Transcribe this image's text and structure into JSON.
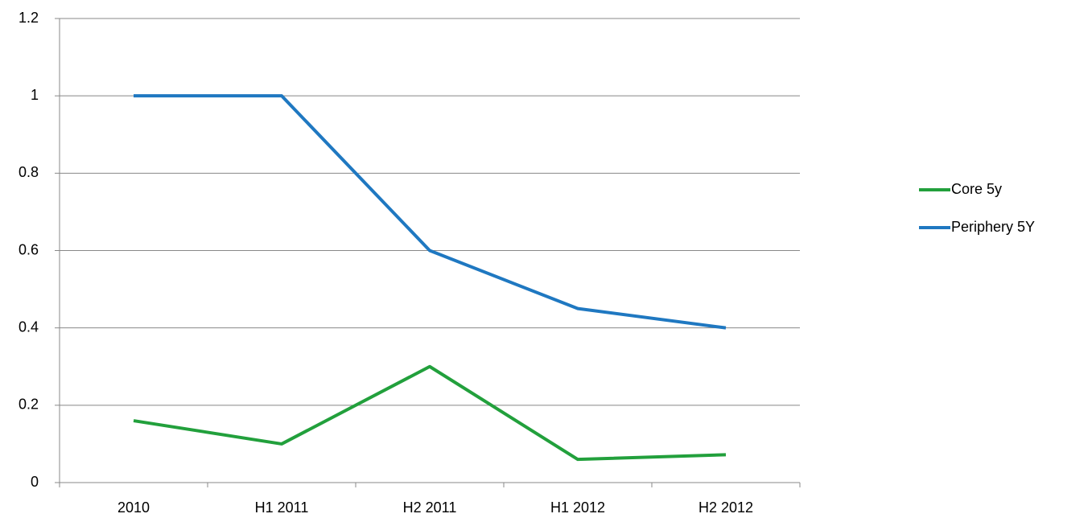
{
  "chart_data": {
    "type": "line",
    "categories": [
      "2010",
      "H1 2011",
      "H2 2011",
      "H1 2012",
      "H2 2012"
    ],
    "series": [
      {
        "name": "Core 5y",
        "color": "#22a03c",
        "values": [
          0.16,
          0.1,
          0.3,
          0.06,
          0.072
        ]
      },
      {
        "name": "Periphery 5Y",
        "color": "#1f78c1",
        "values": [
          1,
          1,
          0.6,
          0.45,
          0.4
        ]
      }
    ],
    "ylim": [
      0,
      1.2
    ],
    "yticks": [
      0,
      0.2,
      0.4,
      0.6,
      0.8,
      1,
      1.2
    ],
    "grid": true,
    "legend": "right"
  }
}
